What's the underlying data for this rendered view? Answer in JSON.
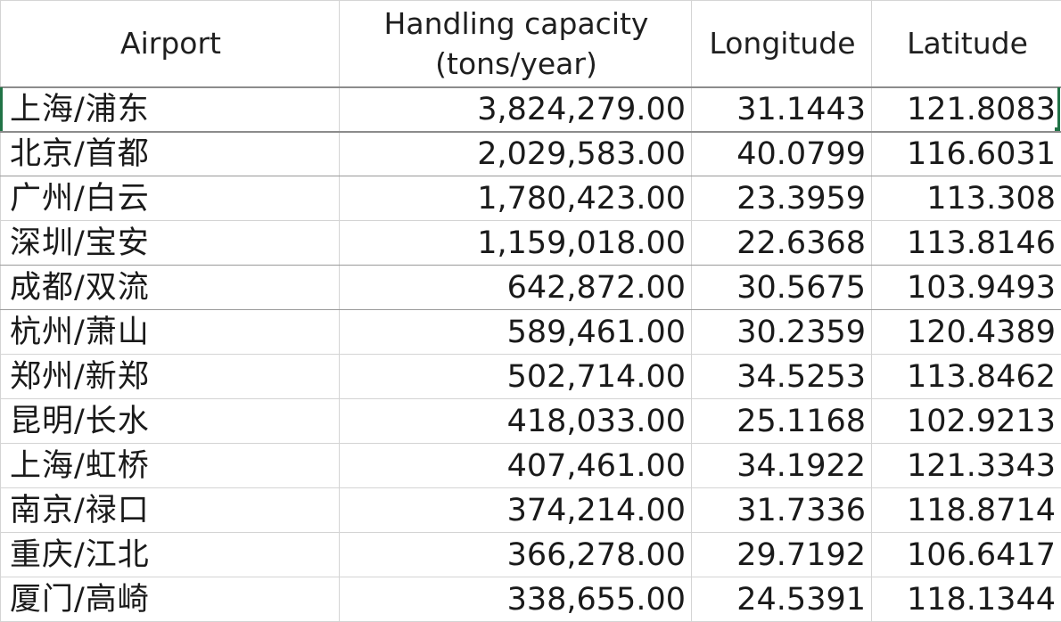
{
  "table": {
    "headers": {
      "airport": "Airport",
      "capacity_line1": "Handling capacity",
      "capacity_line2": "(tons/year)",
      "longitude": "Longitude",
      "latitude": "Latitude"
    },
    "rows": [
      {
        "airport": "上海/浦东",
        "capacity": "3,824,279.00",
        "longitude": "31.1443",
        "latitude": "121.8083"
      },
      {
        "airport": "北京/首都",
        "capacity": "2,029,583.00",
        "longitude": "40.0799",
        "latitude": "116.6031"
      },
      {
        "airport": "广州/白云",
        "capacity": "1,780,423.00",
        "longitude": "23.3959",
        "latitude": "113.308"
      },
      {
        "airport": "深圳/宝安",
        "capacity": "1,159,018.00",
        "longitude": "22.6368",
        "latitude": "113.8146"
      },
      {
        "airport": "成都/双流",
        "capacity": "642,872.00",
        "longitude": "30.5675",
        "latitude": "103.9493"
      },
      {
        "airport": "杭州/萧山",
        "capacity": "589,461.00",
        "longitude": "30.2359",
        "latitude": "120.4389"
      },
      {
        "airport": "郑州/新郑",
        "capacity": "502,714.00",
        "longitude": "34.5253",
        "latitude": "113.8462"
      },
      {
        "airport": "昆明/长水",
        "capacity": "418,033.00",
        "longitude": "25.1168",
        "latitude": "102.9213"
      },
      {
        "airport": "上海/虹桥",
        "capacity": "407,461.00",
        "longitude": "34.1922",
        "latitude": "121.3343"
      },
      {
        "airport": "南京/禄口",
        "capacity": "374,214.00",
        "longitude": "31.7336",
        "latitude": "118.8714"
      },
      {
        "airport": "重庆/江北",
        "capacity": "366,278.00",
        "longitude": "29.7192",
        "latitude": "106.6417"
      },
      {
        "airport": "厦门/高崎",
        "capacity": "338,655.00",
        "longitude": "24.5391",
        "latitude": "118.1344"
      }
    ]
  },
  "colors": {
    "selection": "#217346",
    "gridline": "#d4d4d4",
    "gridline_dark": "#8c8c8c"
  }
}
